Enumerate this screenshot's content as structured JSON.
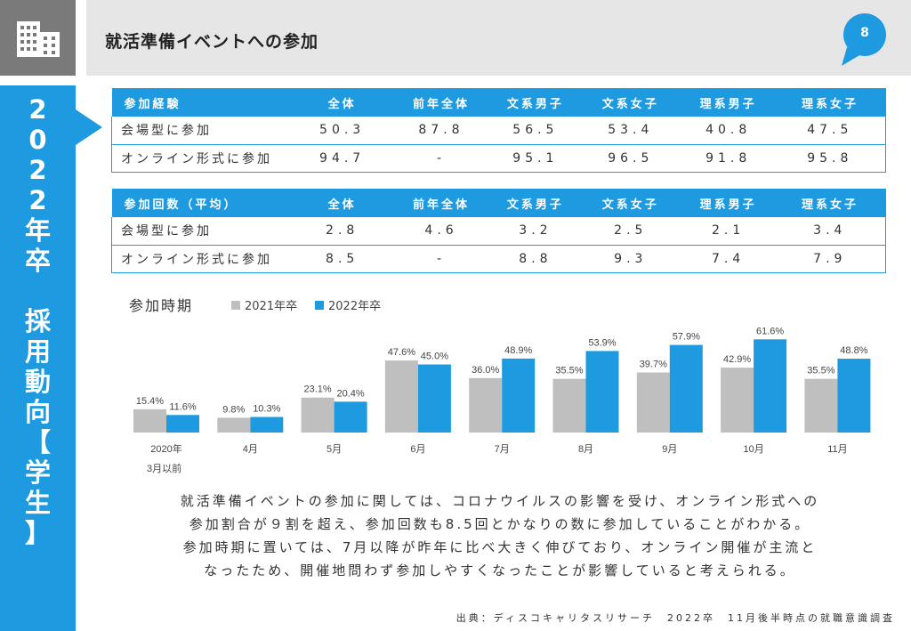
{
  "header": {
    "title": "就活準備イベントへの参加",
    "page_number": "8"
  },
  "sidebar": {
    "vertical_text": "2\n0\n2\n2\n年\n卒\n\n採\n用\n動\n向\n【\n学\n生\n】"
  },
  "table1": {
    "headers": [
      "参加経験",
      "全体",
      "前年全体",
      "文系男子",
      "文系女子",
      "理系男子",
      "理系女子"
    ],
    "rows": [
      [
        "会場型に参加",
        "50.3",
        "87.8",
        "56.5",
        "53.4",
        "40.8",
        "47.5"
      ],
      [
        "オンライン形式に参加",
        "94.7",
        "-",
        "95.1",
        "96.5",
        "91.8",
        "95.8"
      ]
    ]
  },
  "table2": {
    "headers": [
      "参加回数（平均）",
      "全体",
      "前年全体",
      "文系男子",
      "文系女子",
      "理系男子",
      "理系女子"
    ],
    "rows": [
      [
        "会場型に参加",
        "2.8",
        "4.6",
        "3.2",
        "2.5",
        "2.1",
        "3.4"
      ],
      [
        "オンライン形式に参加",
        "8.5",
        "-",
        "8.8",
        "9.3",
        "7.4",
        "7.9"
      ]
    ]
  },
  "chart_data": {
    "type": "bar",
    "title": "参加時期",
    "categories": [
      "2020年\n3月以前",
      "4月",
      "5月",
      "6月",
      "7月",
      "8月",
      "9月",
      "10月",
      "11月"
    ],
    "series": [
      {
        "name": "2021年卒",
        "color": "#bfbfbf",
        "values": [
          15.4,
          9.8,
          23.1,
          47.6,
          36.0,
          35.5,
          39.7,
          42.9,
          35.5
        ]
      },
      {
        "name": "2022年卒",
        "color": "#1e9be0",
        "values": [
          11.6,
          10.3,
          20.4,
          45.0,
          48.9,
          53.9,
          57.9,
          61.6,
          48.8
        ]
      }
    ],
    "ylim": [
      0,
      70
    ],
    "legend": "top",
    "grid": false
  },
  "paragraph": [
    "就活準備イベントの参加に関しては、コロナウイルスの影響を受け、オンライン形式への",
    "参加割合が９割を超え、参加回数も8.5回とかなりの数に参加していることがわかる。",
    "参加時期に置いては、7月以降が昨年に比べ大きく伸びており、オンライン開催が主流と",
    "なったため、開催地問わず参加しやすくなったことが影響していると考えられる。"
  ],
  "source": "出典：ディスコキャリタスリサーチ　2022卒　11月後半時点の就職意識調査",
  "colors": {
    "accent": "#1e9be0",
    "gray_bar": "#bfbfbf",
    "header_bg": "#e6e6e6",
    "icon_bg": "#7a7a7a"
  }
}
